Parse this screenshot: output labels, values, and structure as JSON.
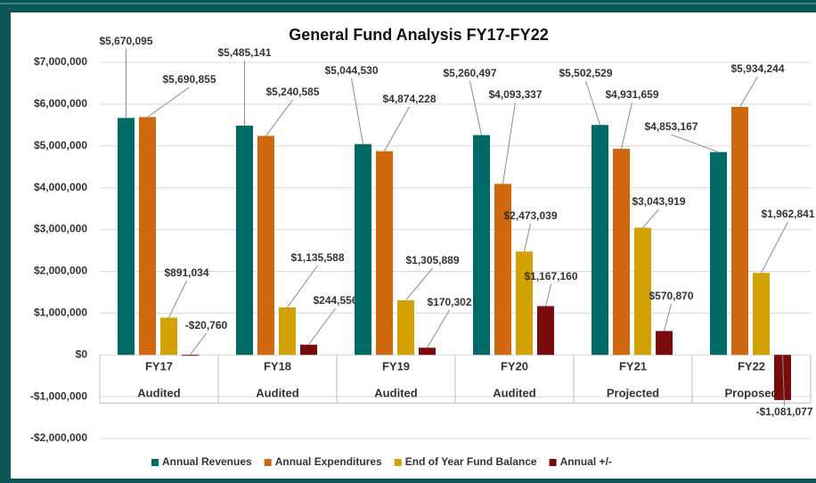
{
  "chart_data": {
    "type": "bar",
    "title": "General Fund Analysis FY17-FY22",
    "categories": [
      "FY17",
      "FY18",
      "FY19",
      "FY20",
      "FY21",
      "FY22"
    ],
    "category_status": [
      "Audited",
      "Audited",
      "Audited",
      "Audited",
      "Projected",
      "Proposed"
    ],
    "series": [
      {
        "name": "Annual Revenues",
        "color": "#006b66",
        "values": [
          5670095,
          5485141,
          5044530,
          5260497,
          5502529,
          4853167
        ],
        "value_labels": [
          "$5,670,095",
          "$5,485,141",
          "$5,044,530",
          "$5,260,497",
          "$5,502,529",
          "$4,853,167"
        ]
      },
      {
        "name": "Annual Expenditures",
        "color": "#d0680f",
        "values": [
          5690855,
          5240585,
          4874228,
          4093337,
          4931659,
          5934244
        ],
        "value_labels": [
          "$5,690,855",
          "$5,240,585",
          "$4,874,228",
          "$4,093,337",
          "$4,931,659",
          "$5,934,244"
        ]
      },
      {
        "name": "End of Year Fund Balance",
        "color": "#d4a103",
        "values": [
          891034,
          1135588,
          1305889,
          2473039,
          3043919,
          1962841
        ],
        "value_labels": [
          "$891,034",
          "$1,135,588",
          "$1,305,889",
          "$2,473,039",
          "$3,043,919",
          "$1,962,841"
        ]
      },
      {
        "name": "Annual +/-",
        "color": "#7a0b0b",
        "values": [
          -20760,
          244556,
          170302,
          1167160,
          570870,
          -1081077
        ],
        "value_labels": [
          "-$20,760",
          "$244,556",
          "$170,302",
          "$1,167,160",
          "$570,870",
          "-$1,081,077"
        ]
      }
    ],
    "ylim": [
      -2000000,
      7000000
    ],
    "yticks": [
      {
        "value": -2000000,
        "label": "-$2,000,000"
      },
      {
        "value": -1000000,
        "label": "-$1,000,000"
      },
      {
        "value": 0,
        "label": "$0"
      },
      {
        "value": 1000000,
        "label": "$1,000,000"
      },
      {
        "value": 2000000,
        "label": "$2,000,000"
      },
      {
        "value": 3000000,
        "label": "$3,000,000"
      },
      {
        "value": 4000000,
        "label": "$4,000,000"
      },
      {
        "value": 5000000,
        "label": "$5,000,000"
      },
      {
        "value": 6000000,
        "label": "$6,000,000"
      },
      {
        "value": 7000000,
        "label": "$7,000,000"
      }
    ],
    "grid": true,
    "legend": "bottom",
    "negative_label_color": "#ff0000"
  }
}
